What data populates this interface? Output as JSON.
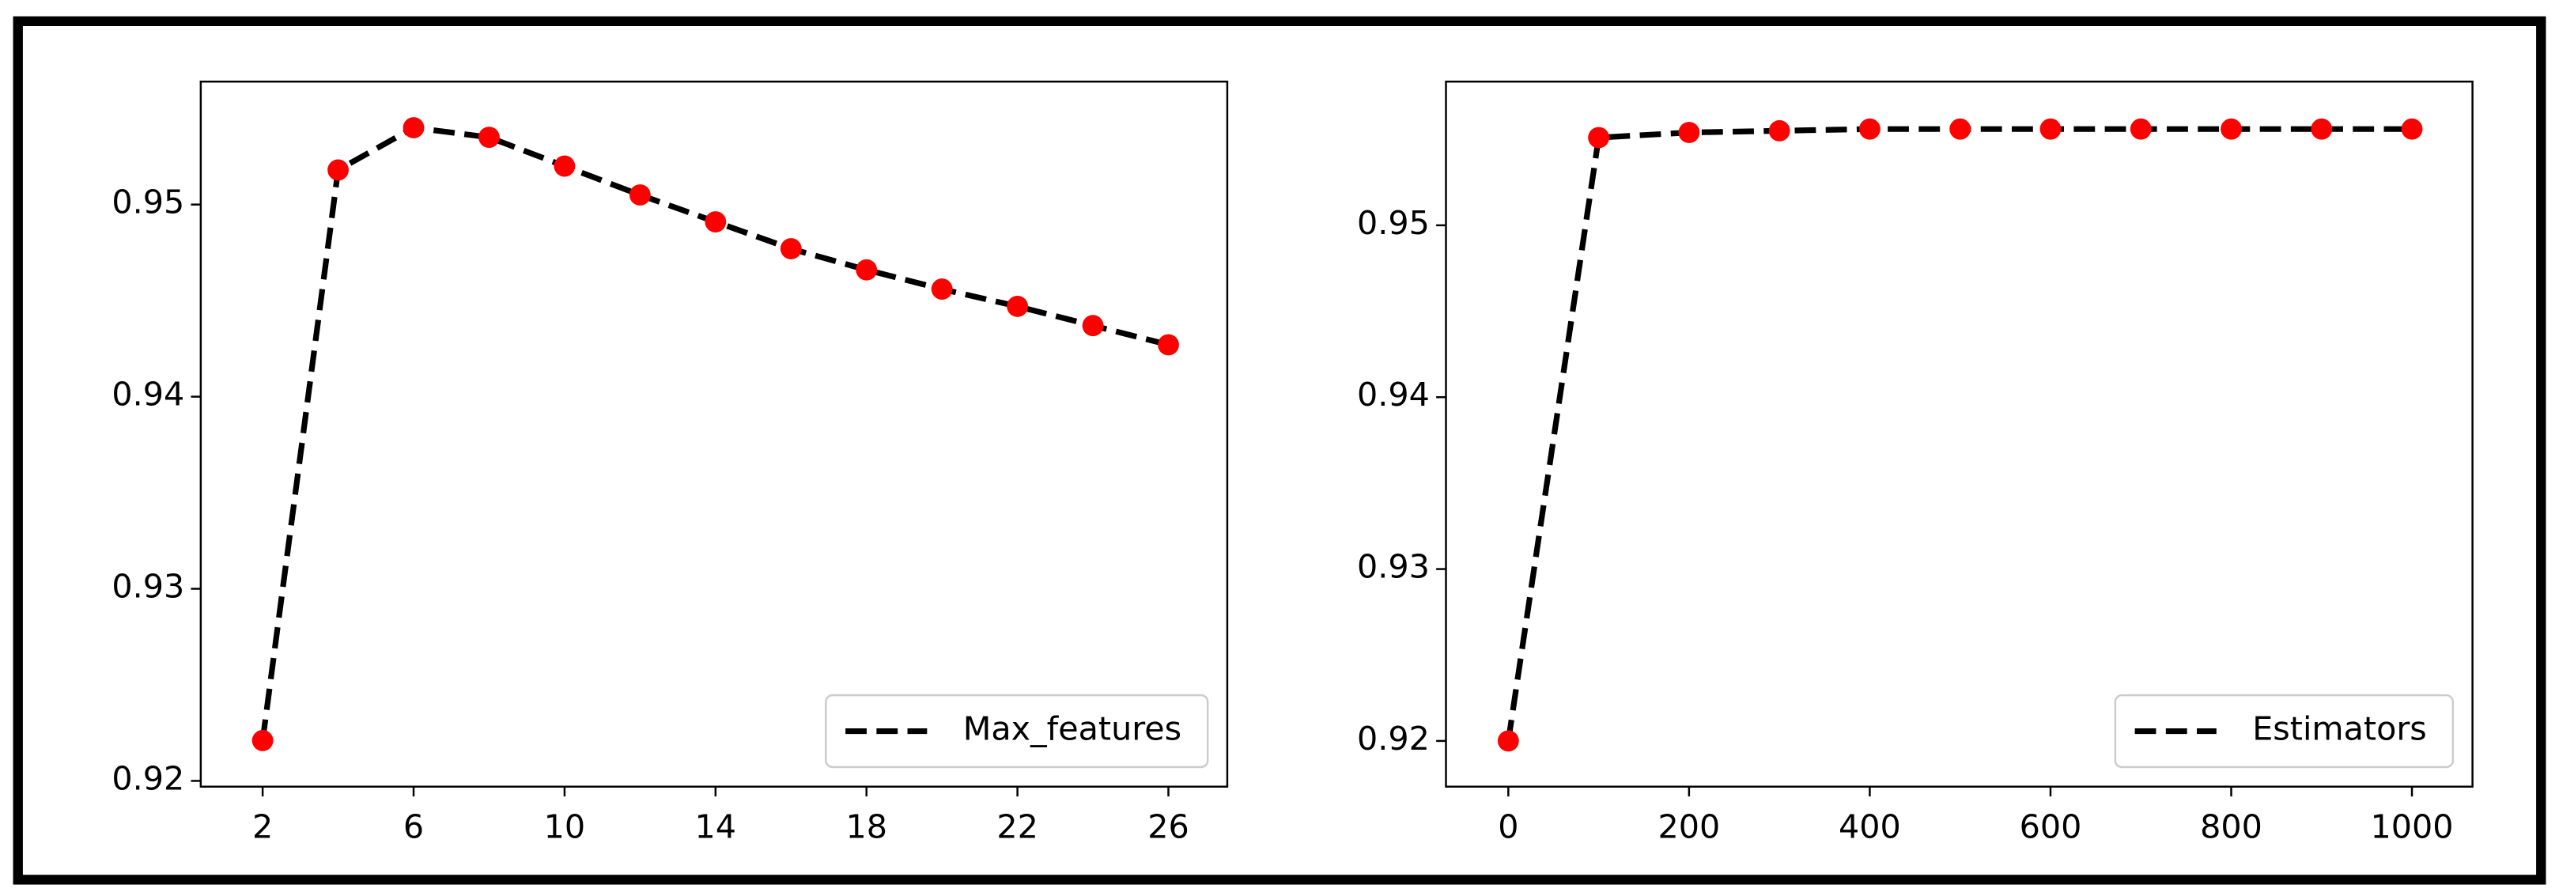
{
  "chart_data": [
    {
      "type": "line",
      "x": [
        2,
        4,
        6,
        8,
        10,
        12,
        14,
        16,
        18,
        20,
        22,
        24,
        26
      ],
      "series": [
        {
          "name": "Max_features",
          "color": "#000000",
          "marker_color": "#ff0000",
          "values": [
            0.9221,
            0.9518,
            0.954,
            0.9535,
            0.952,
            0.9505,
            0.9491,
            0.9477,
            0.9466,
            0.9456,
            0.9447,
            0.9437,
            0.9427
          ]
        }
      ],
      "xlim": [
        0.36,
        27.56
      ],
      "ylim": [
        0.9197,
        0.9564
      ],
      "xticks": [
        2,
        6,
        10,
        14,
        18,
        22,
        26
      ],
      "yticks": [
        0.92,
        0.93,
        0.94,
        0.95
      ],
      "legend": "lower right"
    },
    {
      "type": "line",
      "x": [
        0,
        100,
        200,
        300,
        400,
        500,
        600,
        700,
        800,
        900,
        1000
      ],
      "series": [
        {
          "name": "Estimators",
          "color": "#000000",
          "marker_color": "#ff0000",
          "values": [
            0.92,
            0.9551,
            0.9554,
            0.9555,
            0.9556,
            0.9556,
            0.9556,
            0.9556,
            0.9556,
            0.9556,
            0.9556
          ]
        }
      ],
      "xlim": [
        -69,
        1067
      ],
      "ylim": [
        0.91734,
        0.95836
      ],
      "xticks": [
        0,
        200,
        400,
        600,
        800,
        1000
      ],
      "yticks": [
        0.92,
        0.93,
        0.94,
        0.95
      ],
      "legend": "lower right"
    }
  ]
}
